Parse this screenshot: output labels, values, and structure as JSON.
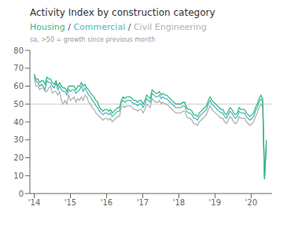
{
  "chart_data": {
    "type": "line",
    "title": "Activity Index by construction category",
    "subtitle": "Housing / Commercial / Civil Engineering",
    "annotations": [
      "sa, >50 = growth since previous month"
    ],
    "grid": false,
    "xlim": [
      2013.88,
      2020.58
    ],
    "xticks": [
      {
        "value": 2014,
        "label": "'14"
      },
      {
        "value": 2015,
        "label": "'15"
      },
      {
        "value": 2016,
        "label": "'16"
      },
      {
        "value": 2017,
        "label": "'17"
      },
      {
        "value": 2018,
        "label": "'18"
      },
      {
        "value": 2019,
        "label": "'19"
      },
      {
        "value": 2020,
        "label": "'20"
      }
    ],
    "ylim": [
      0,
      80
    ],
    "yticks": [
      0,
      10,
      20,
      30,
      40,
      50,
      60,
      70,
      80
    ],
    "reference_line": 50,
    "x": [
      2014,
      2014.05015625,
      2014.1003125,
      2014.15046875,
      2014.200625,
      2014.25078125,
      2014.3009375,
      2014.35109375,
      2014.40125,
      2014.45140625,
      2014.5015625,
      2014.55171875,
      2014.601875,
      2014.65203125,
      2014.7021875,
      2014.75234375,
      2014.8025,
      2014.85265625,
      2014.9028125,
      2014.95296875,
      2015.003125,
      2015.05328125,
      2015.1034375,
      2015.15359375,
      2015.20375,
      2015.25390625,
      2015.3040625,
      2015.35421875,
      2015.404375,
      2015.45453125,
      2015.5046875,
      2015.55484375,
      2015.605,
      2015.65515625,
      2015.7053125,
      2015.75546875,
      2015.805625,
      2015.85578125,
      2015.9059375,
      2015.95609375,
      2016.00625,
      2016.05640625,
      2016.1065625,
      2016.15671875,
      2016.206875,
      2016.25703125,
      2016.3071875,
      2016.35734375,
      2016.4075,
      2016.45765625,
      2016.5078125,
      2016.55796875,
      2016.608125,
      2016.65828125,
      2016.7084375,
      2016.75859375,
      2016.80875,
      2016.85890625,
      2016.9090625,
      2016.95921875,
      2017.009375,
      2017.05953125,
      2017.1096875,
      2017.15984375,
      2017.21,
      2017.26015625,
      2017.3103125,
      2017.36046875,
      2017.410625,
      2017.46078125,
      2017.5109375,
      2017.56109375,
      2017.61125,
      2017.66140625,
      2017.7115625,
      2017.76171875,
      2017.811875,
      2017.86203125,
      2017.9121875,
      2017.96234375,
      2018.0125,
      2018.06265625,
      2018.1128125,
      2018.16296875,
      2018.213125,
      2018.26328125,
      2018.3134375,
      2018.36359375,
      2018.41375,
      2018.46390625,
      2018.5140625,
      2018.56421875,
      2018.614375,
      2018.66453125,
      2018.7146875,
      2018.76484375,
      2018.815,
      2018.86515625,
      2018.9153125,
      2018.96546875,
      2019.015625,
      2019.06578125,
      2019.1159375,
      2019.16609375,
      2019.21625,
      2019.26640625,
      2019.3165625,
      2019.36671875,
      2019.416875,
      2019.46703125,
      2019.5171875,
      2019.56734375,
      2019.6175,
      2019.66765625,
      2019.7178125,
      2019.76796875,
      2019.818125,
      2019.86828125,
      2019.9184375,
      2019.96859375,
      2020.01875,
      2020.06890625,
      2020.1190625,
      2020.16921875,
      2020.219375,
      2020.26953125,
      2020.3196875,
      2020.36984375,
      2020.42
    ],
    "series": [
      {
        "name": "Civil Engineering",
        "color": "#b2b2b2",
        "values": [
          65,
          60,
          60,
          58,
          59,
          59,
          57,
          57,
          59,
          60,
          56,
          57,
          57,
          55,
          57,
          52,
          50,
          52,
          50,
          55,
          52,
          53,
          54,
          51,
          53,
          52,
          54,
          52,
          55,
          54,
          51,
          50,
          48,
          47,
          45,
          44,
          43,
          42,
          41,
          42,
          42,
          41,
          42,
          40,
          41,
          42,
          43,
          43,
          48,
          49,
          48,
          49,
          49,
          49,
          48,
          47,
          47,
          46,
          47,
          47,
          45,
          47,
          50,
          49,
          48,
          53,
          52,
          51,
          51,
          52,
          50,
          51,
          50,
          50,
          49,
          48,
          47,
          46,
          45,
          45,
          45,
          45,
          46,
          46,
          43,
          42,
          42,
          41,
          39,
          39,
          38,
          40,
          41,
          42,
          43,
          44,
          47,
          49,
          47,
          46,
          45,
          44,
          43,
          42,
          42,
          40,
          39,
          41,
          43,
          42,
          40,
          39,
          40,
          43,
          42,
          42,
          42,
          40,
          39,
          38,
          39,
          40,
          43,
          45,
          48,
          50,
          48,
          8,
          26
        ]
      },
      {
        "name": "Commercial",
        "color": "#50b8c1",
        "values": [
          67,
          63,
          62,
          60,
          61,
          60,
          58,
          63,
          62,
          62,
          60,
          59,
          62,
          58,
          60,
          58,
          57,
          57,
          55,
          58,
          57,
          58,
          58,
          56,
          57,
          58,
          60,
          57,
          59,
          57,
          55,
          54,
          52,
          51,
          49,
          48,
          46,
          45,
          44,
          45,
          45,
          44,
          45,
          43,
          44,
          45,
          46,
          46,
          51,
          52,
          51,
          52,
          52,
          52,
          51,
          50,
          50,
          49,
          50,
          50,
          48,
          50,
          53,
          52,
          51,
          56,
          55,
          54,
          54,
          55,
          53,
          54,
          53,
          53,
          52,
          51,
          50,
          49,
          48,
          48,
          48,
          48,
          49,
          49,
          46,
          45,
          45,
          44,
          42,
          42,
          41,
          43,
          44,
          45,
          46,
          47,
          50,
          52,
          50,
          49,
          48,
          47,
          46,
          45,
          45,
          43,
          42,
          44,
          46,
          45,
          43,
          42,
          43,
          46,
          45,
          45,
          45,
          43,
          42,
          41,
          42,
          43,
          46,
          48,
          51,
          53,
          51,
          9,
          28
        ]
      },
      {
        "name": "Housing",
        "color": "#3db87a",
        "values": [
          66,
          64,
          64,
          62,
          63,
          63,
          61,
          65,
          64,
          64,
          62,
          61,
          63,
          60,
          62,
          60,
          59,
          59,
          57,
          60,
          60,
          60,
          60,
          58,
          60,
          60,
          62,
          60,
          61,
          59,
          58,
          56,
          55,
          54,
          52,
          51,
          48,
          47,
          46,
          47,
          47,
          46,
          47,
          45,
          46,
          47,
          48,
          48,
          52,
          54,
          53,
          54,
          54,
          54,
          53,
          52,
          52,
          51,
          52,
          52,
          50,
          52,
          55,
          54,
          53,
          58,
          57,
          56,
          56,
          57,
          55,
          56,
          55,
          55,
          54,
          53,
          52,
          51,
          50,
          50,
          50,
          50,
          51,
          51,
          48,
          47,
          47,
          46,
          44,
          44,
          43,
          45,
          46,
          47,
          48,
          49,
          52,
          54,
          52,
          51,
          50,
          49,
          48,
          47,
          47,
          45,
          44,
          46,
          48,
          47,
          45,
          44,
          45,
          48,
          47,
          47,
          47,
          45,
          44,
          43,
          44,
          45,
          48,
          50,
          53,
          55,
          53,
          8,
          30
        ]
      }
    ]
  }
}
